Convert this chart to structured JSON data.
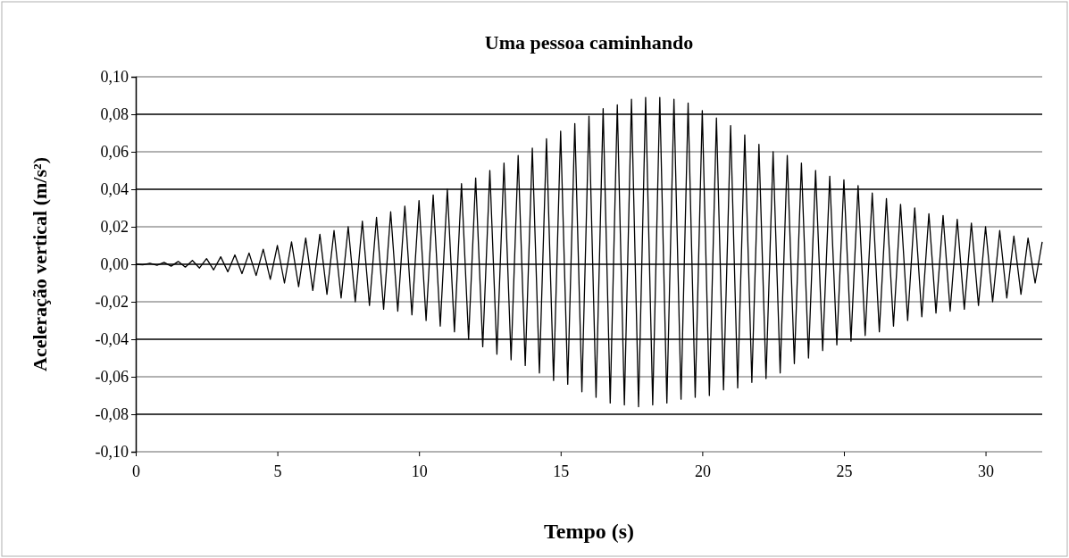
{
  "chart_data": {
    "type": "line",
    "title": "Uma pessoa caminhando",
    "xlabel": "Tempo (s)",
    "ylabel": "Aceleração vertical (m/s²)",
    "xlim": [
      0,
      32
    ],
    "xticks": [
      0,
      5,
      10,
      15,
      20,
      25,
      30
    ],
    "ylim": [
      -0.1,
      0.1
    ],
    "yticks": [
      {
        "value": -0.1,
        "label": "-0,10"
      },
      {
        "value": -0.08,
        "label": "-0,08"
      },
      {
        "value": -0.06,
        "label": "-0,06"
      },
      {
        "value": -0.04,
        "label": "-0,04"
      },
      {
        "value": -0.02,
        "label": "-0,02"
      },
      {
        "value": 0,
        "label": "0,00"
      },
      {
        "value": 0.02,
        "label": "0,02"
      },
      {
        "value": 0.04,
        "label": "0,04"
      },
      {
        "value": 0.06,
        "label": "0,06"
      },
      {
        "value": 0.08,
        "label": "0,08"
      },
      {
        "value": 0.1,
        "label": "0,10"
      }
    ],
    "grid": "y",
    "line_style": "solid",
    "series": [
      {
        "color": "#000000",
        "x": [
          0,
          0.25,
          0.5,
          0.75,
          1,
          1.25,
          1.5,
          1.75,
          2,
          2.25,
          2.5,
          2.75,
          3,
          3.25,
          3.5,
          3.75,
          4,
          4.25,
          4.5,
          4.75,
          5,
          5.25,
          5.5,
          5.75,
          6,
          6.25,
          6.5,
          6.75,
          7,
          7.25,
          7.5,
          7.75,
          8,
          8.25,
          8.5,
          8.75,
          9,
          9.25,
          9.5,
          9.75,
          10,
          10.25,
          10.5,
          10.75,
          11,
          11.25,
          11.5,
          11.75,
          12,
          12.25,
          12.5,
          12.75,
          13,
          13.25,
          13.5,
          13.75,
          14,
          14.25,
          14.5,
          14.75,
          15,
          15.25,
          15.5,
          15.75,
          16,
          16.25,
          16.5,
          16.75,
          17,
          17.25,
          17.5,
          17.75,
          18,
          18.25,
          18.5,
          18.75,
          19,
          19.25,
          19.5,
          19.75,
          20,
          20.25,
          20.5,
          20.75,
          21,
          21.25,
          21.5,
          21.75,
          22,
          22.25,
          22.5,
          22.75,
          23,
          23.25,
          23.5,
          23.75,
          24,
          24.25,
          24.5,
          24.75,
          25,
          25.25,
          25.5,
          25.75,
          26,
          26.25,
          26.5,
          26.75,
          27,
          27.25,
          27.5,
          27.75,
          28,
          28.25,
          28.5,
          28.75,
          29,
          29.25,
          29.5,
          29.75,
          30,
          30.25,
          30.5,
          30.75,
          31,
          31.25,
          31.5,
          31.75,
          32
        ],
        "values": [
          0,
          -0.0003,
          0.0005,
          -0.0005,
          0.001,
          -0.001,
          0.0015,
          -0.0015,
          0.002,
          -0.002,
          0.003,
          -0.003,
          0.004,
          -0.004,
          0.005,
          -0.005,
          0.006,
          -0.006,
          0.008,
          -0.008,
          0.01,
          -0.01,
          0.012,
          -0.012,
          0.014,
          -0.014,
          0.016,
          -0.016,
          0.018,
          -0.018,
          0.02,
          -0.02,
          0.023,
          -0.022,
          0.025,
          -0.024,
          0.028,
          -0.025,
          0.031,
          -0.027,
          0.034,
          -0.03,
          0.037,
          -0.033,
          0.04,
          -0.036,
          0.043,
          -0.04,
          0.046,
          -0.044,
          0.05,
          -0.048,
          0.054,
          -0.051,
          0.058,
          -0.054,
          0.062,
          -0.058,
          0.067,
          -0.062,
          0.071,
          -0.064,
          0.075,
          -0.068,
          0.079,
          -0.071,
          0.083,
          -0.074,
          0.085,
          -0.075,
          0.088,
          -0.076,
          0.089,
          -0.075,
          0.089,
          -0.074,
          0.088,
          -0.072,
          0.086,
          -0.071,
          0.082,
          -0.07,
          0.078,
          -0.067,
          0.074,
          -0.066,
          0.069,
          -0.063,
          0.064,
          -0.061,
          0.06,
          -0.058,
          0.058,
          -0.053,
          0.054,
          -0.05,
          0.05,
          -0.046,
          0.047,
          -0.043,
          0.045,
          -0.041,
          0.042,
          -0.038,
          0.038,
          -0.036,
          0.035,
          -0.033,
          0.032,
          -0.03,
          0.03,
          -0.028,
          0.027,
          -0.026,
          0.026,
          -0.025,
          0.024,
          -0.024,
          0.022,
          -0.022,
          0.02,
          -0.02,
          0.018,
          -0.018,
          0.015,
          -0.016,
          0.014,
          -0.01,
          0.012
        ]
      }
    ]
  }
}
